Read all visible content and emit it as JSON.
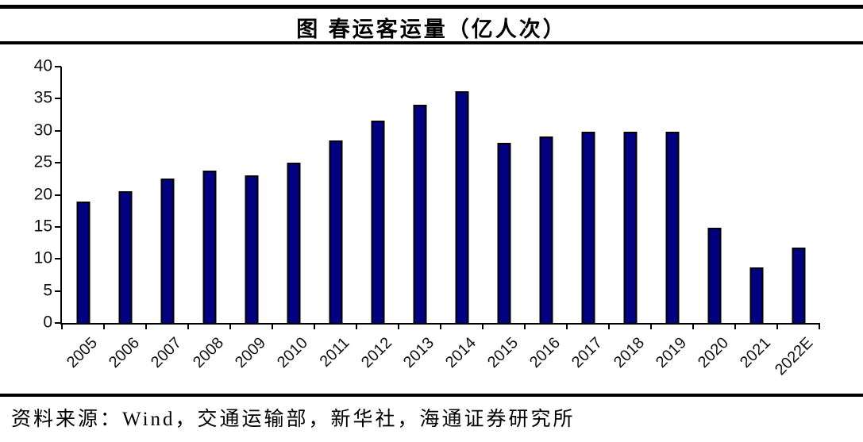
{
  "page": {
    "title": "图 春运客运量（亿人次）",
    "source": "资料来源：Wind，交通运输部，新华社，海通证券研究所"
  },
  "chart_data": {
    "type": "bar",
    "title": "图 春运客运量（亿人次）",
    "categories": [
      "2005",
      "2006",
      "2007",
      "2008",
      "2009",
      "2010",
      "2011",
      "2012",
      "2013",
      "2014",
      "2015",
      "2016",
      "2017",
      "2018",
      "2019",
      "2020",
      "2021",
      "2022E"
    ],
    "values": [
      19.0,
      20.5,
      22.6,
      23.8,
      23.0,
      25.0,
      28.5,
      31.6,
      34.0,
      36.1,
      28.1,
      29.1,
      29.8,
      29.8,
      29.8,
      14.8,
      8.7,
      11.8
    ],
    "xlabel": "",
    "ylabel": "",
    "ylim": [
      0,
      40
    ],
    "yticks": [
      0,
      5,
      10,
      15,
      20,
      25,
      30,
      35,
      40
    ],
    "bar_color": "#000080",
    "bar_border_color": "#000000",
    "grid": false,
    "legend": "none",
    "source": "资料来源：Wind，交通运输部，新华社，海通证券研究所"
  }
}
